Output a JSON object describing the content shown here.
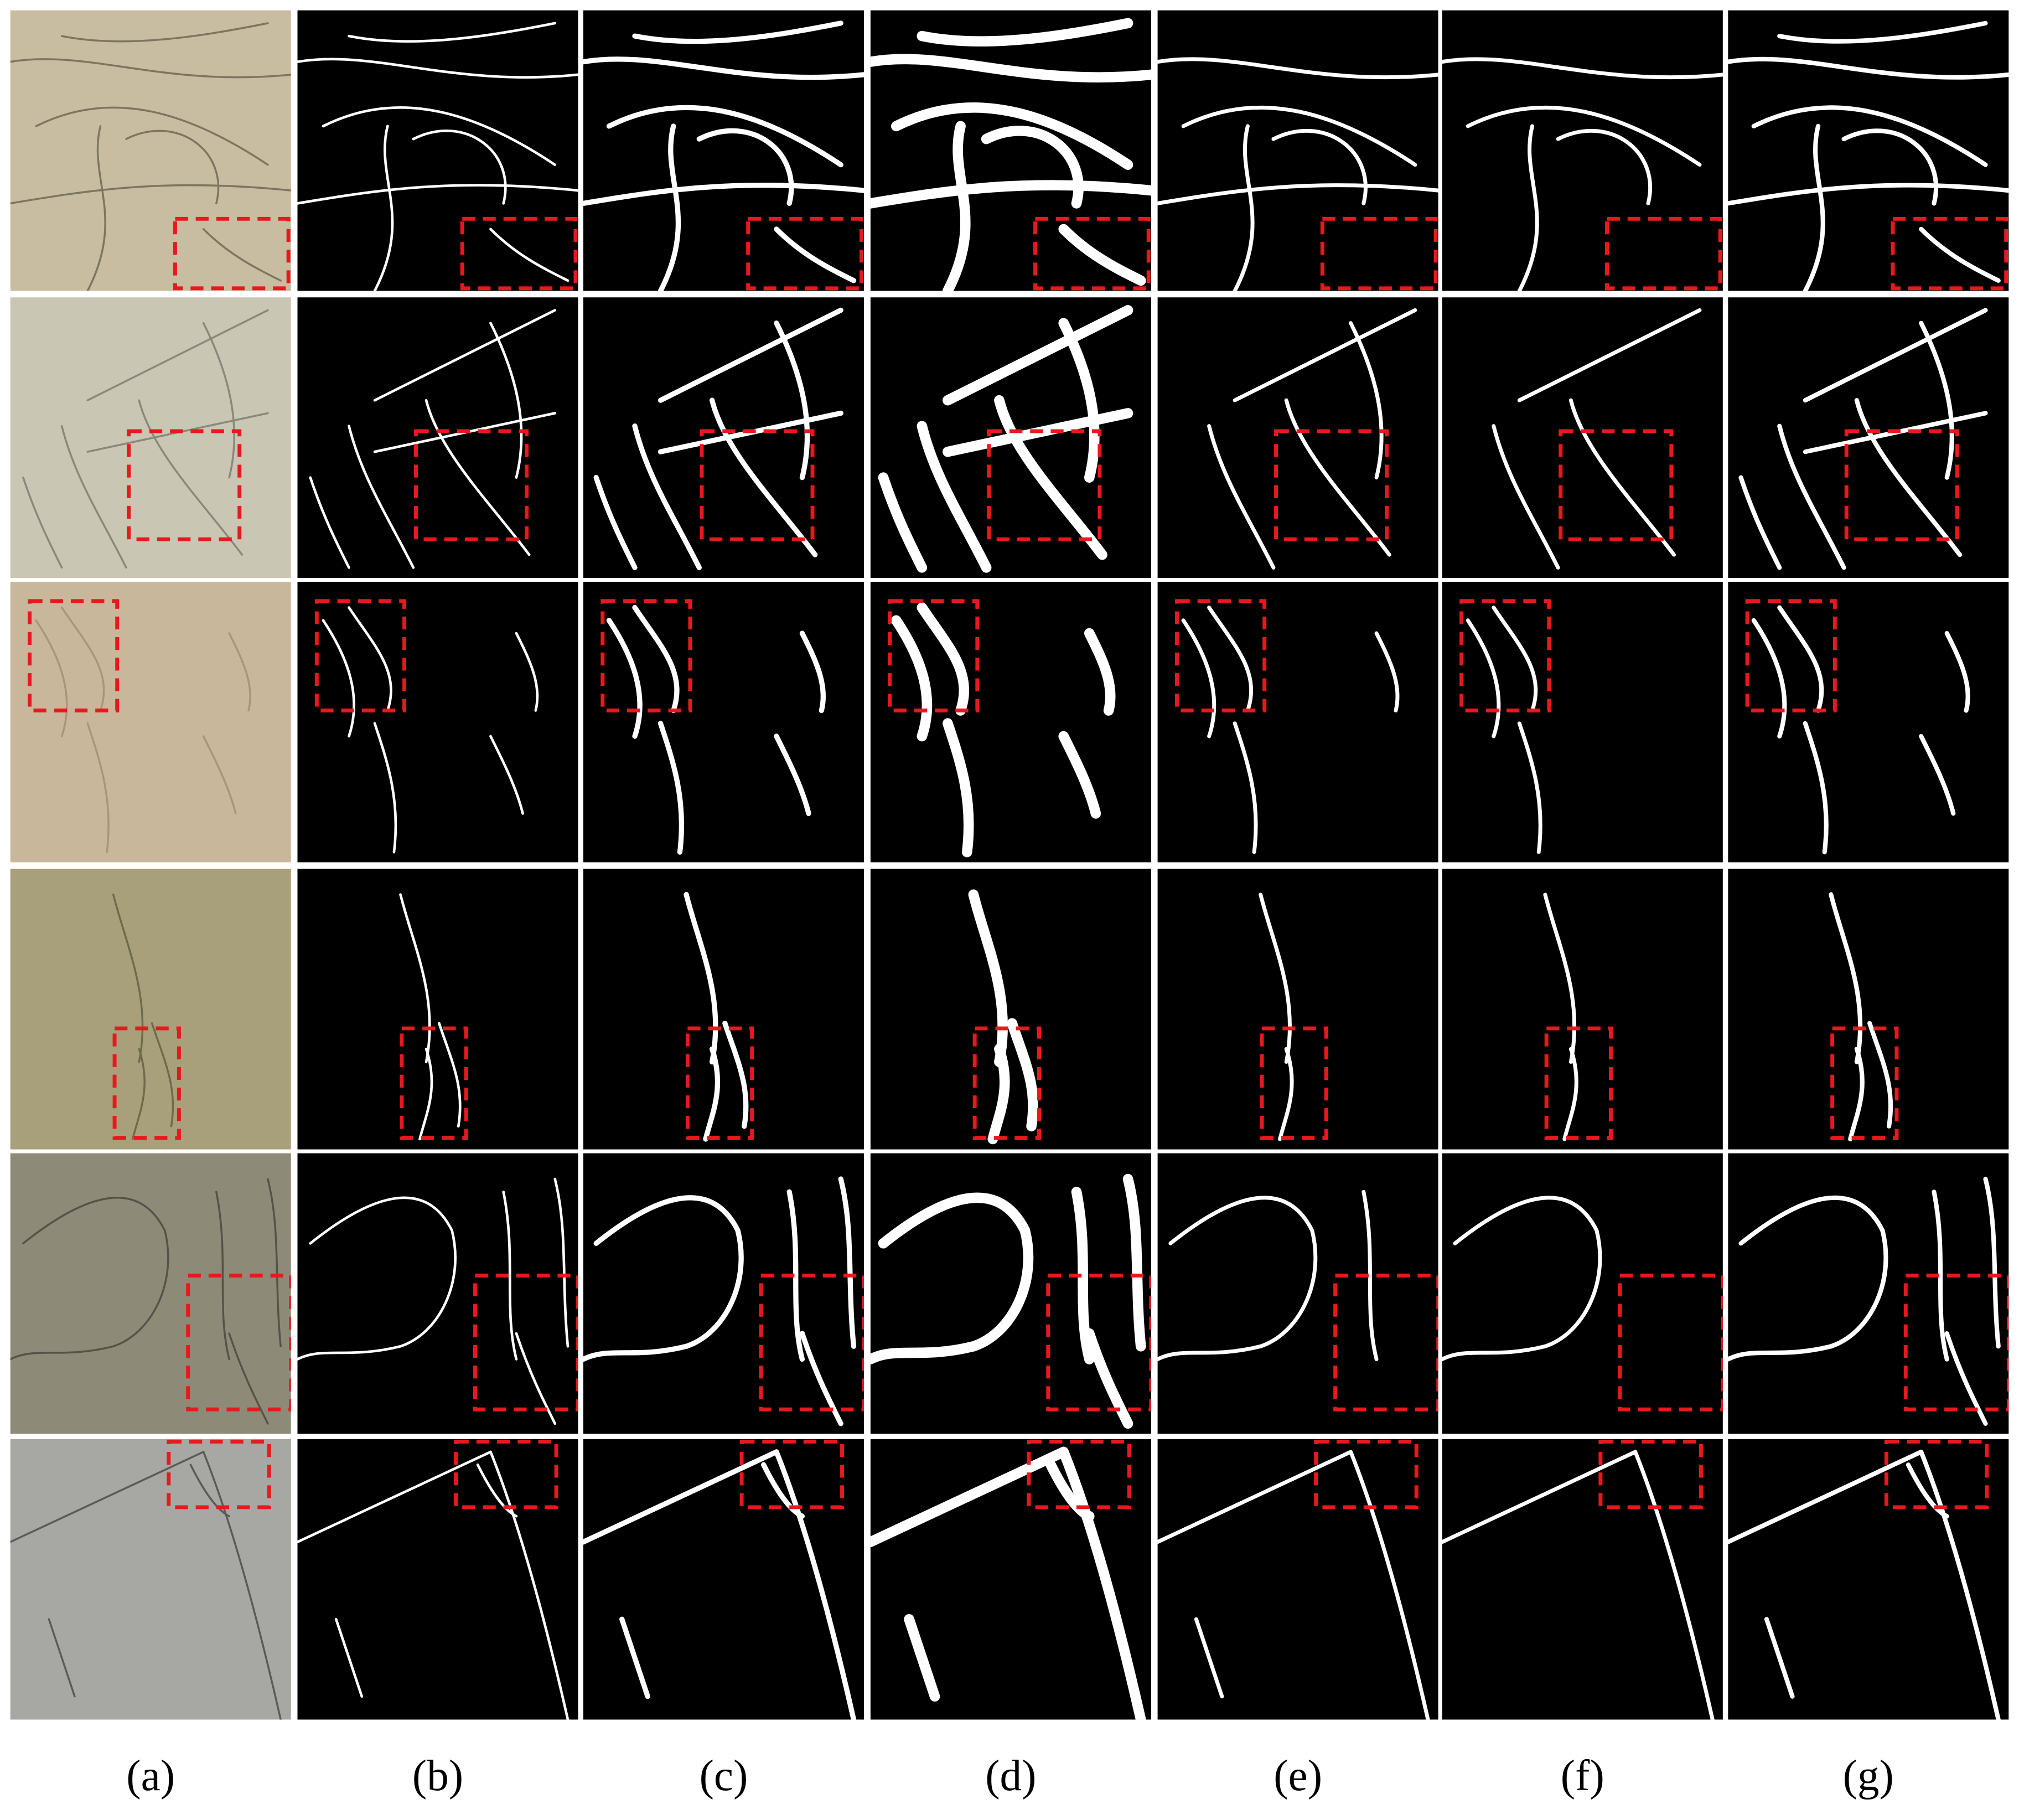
{
  "columns": {
    "labels": [
      "(a)",
      "(b)",
      "(c)",
      "(d)",
      "(e)",
      "(f)",
      "(g)"
    ]
  }
}
